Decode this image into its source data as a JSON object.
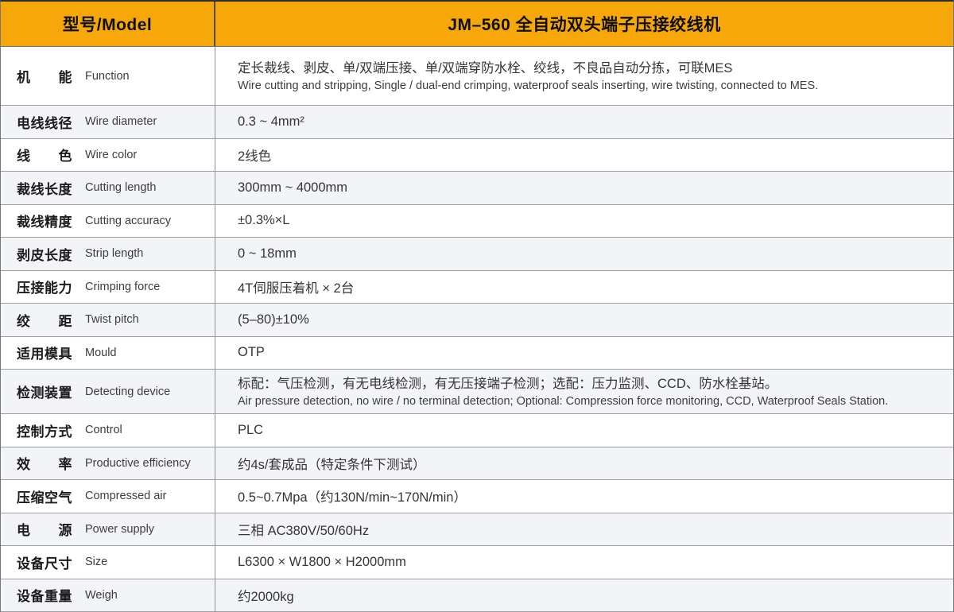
{
  "colors": {
    "header_bg": "#F6A80A",
    "shaded_row_bg": "#F3F4F7",
    "separator": "#9C9EA0"
  },
  "header": {
    "model_label": "型号/Model",
    "product_title": "JM–560 全自动双头端子压接绞线机"
  },
  "rows": [
    {
      "label_cn": "机　　能",
      "label_en": "Function",
      "value_cn": "定长裁线、剥皮、单/双端压接、单/双端穿防水栓、绞线，不良品自动分拣，可联MES",
      "value_en": "Wire cutting and stripping, Single / dual-end crimping, waterproof seals inserting, wire twisting,  connected to MES.",
      "size": "tall-fn"
    },
    {
      "label_cn": "电线线径",
      "label_en": "Wire diameter",
      "value": "0.3 ~ 4mm²"
    },
    {
      "label_cn": "线　　色",
      "label_en": "Wire color",
      "value": "2线色"
    },
    {
      "label_cn": "裁线长度",
      "label_en": "Cutting length",
      "value": "300mm ~ 4000mm"
    },
    {
      "label_cn": "裁线精度",
      "label_en": "Cutting accuracy",
      "value": "±0.3%×L"
    },
    {
      "label_cn": "剥皮长度",
      "label_en": "Strip length",
      "value": "0 ~ 18mm"
    },
    {
      "label_cn": "压接能力",
      "label_en": "Crimping force",
      "value": "4T伺服压着机 × 2台"
    },
    {
      "label_cn": "绞　　距",
      "label_en": "Twist pitch",
      "value": "(5–80)±10%"
    },
    {
      "label_cn": "适用模具",
      "label_en": "Mould",
      "value": "OTP"
    },
    {
      "label_cn": "检测装置",
      "label_en": "Detecting device",
      "value_cn": "标配：气压检测，有无电线检测，有无压接端子检测；选配：压力监测、CCD、防水栓基站。",
      "value_en": "Air pressure detection, no wire / no terminal detection; Optional: Compression force monitoring, CCD, Waterproof Seals Station.",
      "size": "tall-det"
    },
    {
      "label_cn": "控制方式",
      "label_en": "Control",
      "value": "PLC"
    },
    {
      "label_cn": "效　　率",
      "label_en": "Productive efficiency",
      "value": "约4s/套成品（特定条件下测试）"
    },
    {
      "label_cn": "压缩空气",
      "label_en": "Compressed air",
      "value": "0.5~0.7Mpa（约130N/min~170N/min）"
    },
    {
      "label_cn": "电　　源",
      "label_en": "Power supply",
      "value": "三相 AC380V/50/60Hz"
    },
    {
      "label_cn": "设备尺寸",
      "label_en": "Size",
      "value": "L6300 × W1800 × H2000mm"
    },
    {
      "label_cn": "设备重量",
      "label_en": "Weigh",
      "value": "约2000kg"
    }
  ]
}
